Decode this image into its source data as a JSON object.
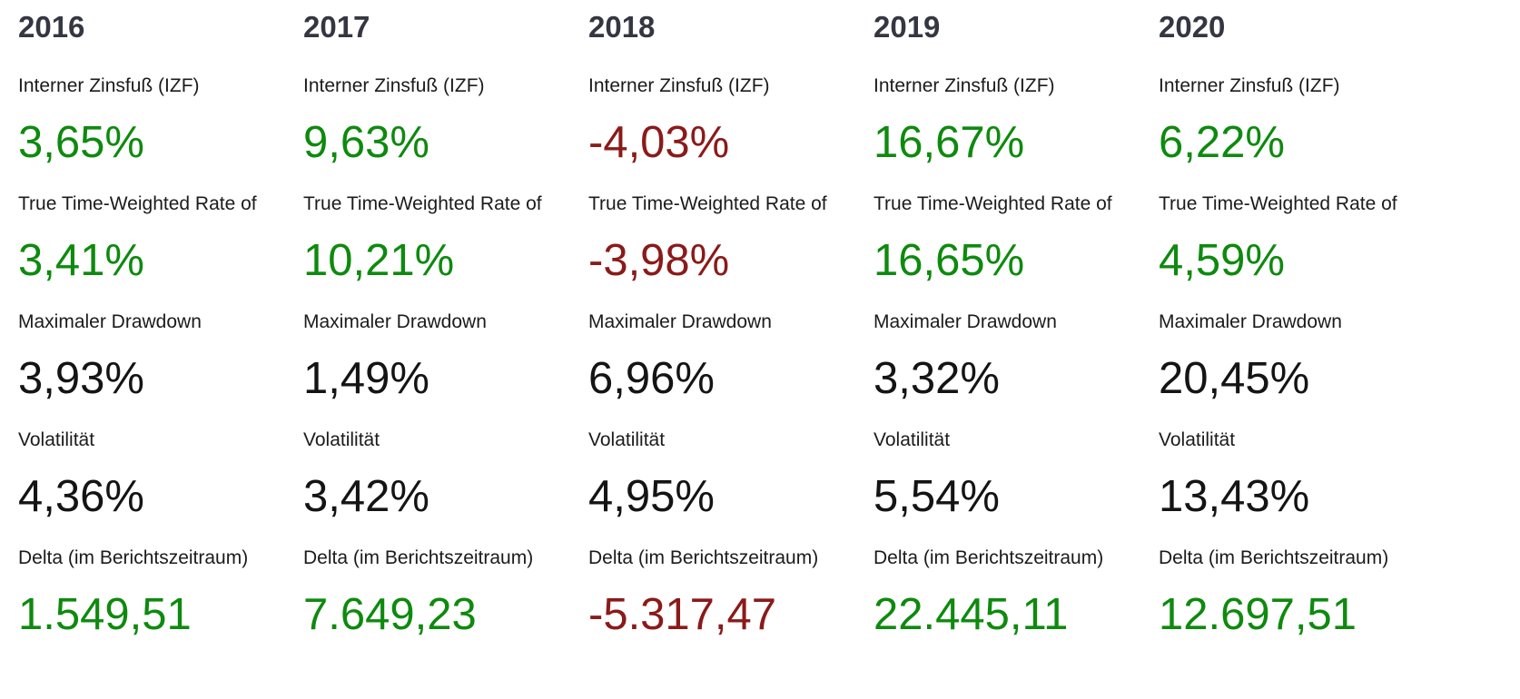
{
  "colors": {
    "positive": "#0e8a0e",
    "negative": "#8b1a1a",
    "neutral": "#141414",
    "header": "#343741",
    "label": "#1b1b1b"
  },
  "columns": [
    {
      "year": "2016",
      "metrics": [
        {
          "label": "Interner Zinsfuß (IZF)",
          "value": "3,65%",
          "sentiment": "positive"
        },
        {
          "label": "True Time-Weighted Rate of",
          "value": "3,41%",
          "sentiment": "positive"
        },
        {
          "label": "Maximaler Drawdown",
          "value": "3,93%",
          "sentiment": "neutral"
        },
        {
          "label": "Volatilität",
          "value": "4,36%",
          "sentiment": "neutral"
        },
        {
          "label": "Delta (im Berichtszeitraum)",
          "value": "1.549,51",
          "sentiment": "positive"
        }
      ]
    },
    {
      "year": "2017",
      "metrics": [
        {
          "label": "Interner Zinsfuß (IZF)",
          "value": "9,63%",
          "sentiment": "positive"
        },
        {
          "label": "True Time-Weighted Rate of",
          "value": "10,21%",
          "sentiment": "positive"
        },
        {
          "label": "Maximaler Drawdown",
          "value": "1,49%",
          "sentiment": "neutral"
        },
        {
          "label": "Volatilität",
          "value": "3,42%",
          "sentiment": "neutral"
        },
        {
          "label": "Delta (im Berichtszeitraum)",
          "value": "7.649,23",
          "sentiment": "positive"
        }
      ]
    },
    {
      "year": "2018",
      "metrics": [
        {
          "label": "Interner Zinsfuß (IZF)",
          "value": "-4,03%",
          "sentiment": "negative"
        },
        {
          "label": "True Time-Weighted Rate of",
          "value": "-3,98%",
          "sentiment": "negative"
        },
        {
          "label": "Maximaler Drawdown",
          "value": "6,96%",
          "sentiment": "neutral"
        },
        {
          "label": "Volatilität",
          "value": "4,95%",
          "sentiment": "neutral"
        },
        {
          "label": "Delta (im Berichtszeitraum)",
          "value": "-5.317,47",
          "sentiment": "negative"
        }
      ]
    },
    {
      "year": "2019",
      "metrics": [
        {
          "label": "Interner Zinsfuß (IZF)",
          "value": "16,67%",
          "sentiment": "positive"
        },
        {
          "label": "True Time-Weighted Rate of",
          "value": "16,65%",
          "sentiment": "positive"
        },
        {
          "label": "Maximaler Drawdown",
          "value": "3,32%",
          "sentiment": "neutral"
        },
        {
          "label": "Volatilität",
          "value": "5,54%",
          "sentiment": "neutral"
        },
        {
          "label": "Delta (im Berichtszeitraum)",
          "value": "22.445,11",
          "sentiment": "positive"
        }
      ]
    },
    {
      "year": "2020",
      "metrics": [
        {
          "label": "Interner Zinsfuß (IZF)",
          "value": "6,22%",
          "sentiment": "positive"
        },
        {
          "label": "True Time-Weighted Rate of",
          "value": "4,59%",
          "sentiment": "positive"
        },
        {
          "label": "Maximaler Drawdown",
          "value": "20,45%",
          "sentiment": "neutral"
        },
        {
          "label": "Volatilität",
          "value": "13,43%",
          "sentiment": "neutral"
        },
        {
          "label": "Delta (im Berichtszeitraum)",
          "value": "12.697,51",
          "sentiment": "positive"
        }
      ]
    }
  ]
}
